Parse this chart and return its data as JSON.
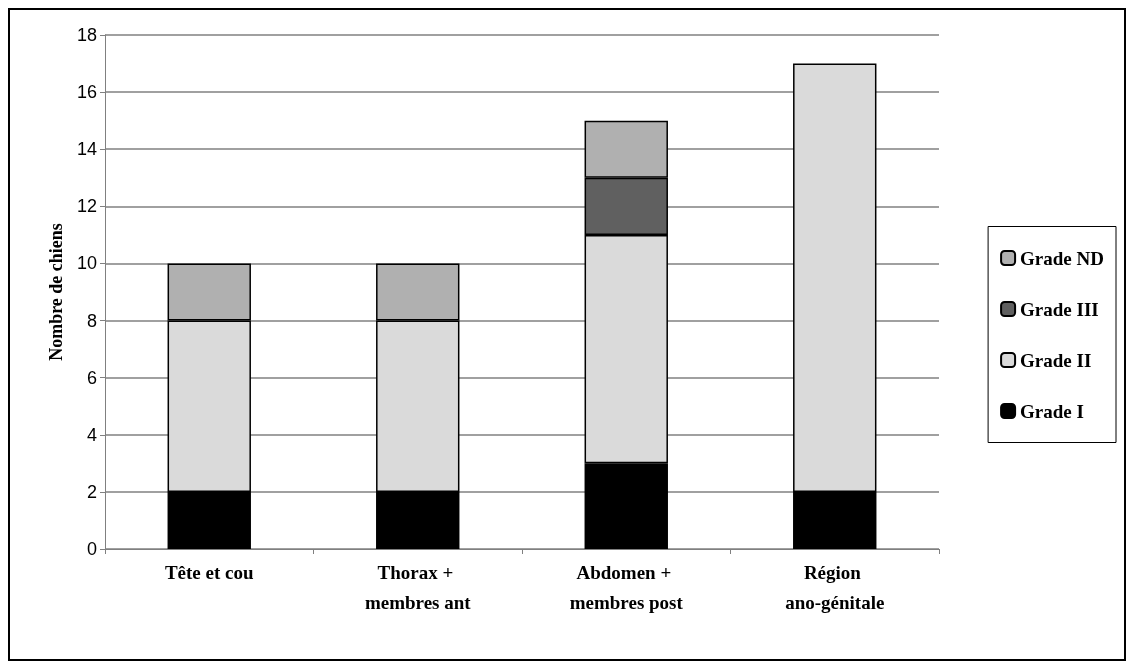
{
  "chart_data": {
    "type": "bar",
    "stacked": true,
    "ylabel": "Nombre de chiens",
    "categories": [
      "Tête et cou",
      "Thorax + membres ant",
      "Abdomen + membres post",
      "Région ano-génitale"
    ],
    "series": [
      {
        "name": "Grade I",
        "color": "#000000",
        "values": [
          2,
          2,
          3,
          2
        ]
      },
      {
        "name": "Grade II",
        "color": "#dadada",
        "values": [
          6,
          6,
          8,
          15
        ]
      },
      {
        "name": "Grade III",
        "color": "#606060",
        "values": [
          0,
          0,
          2,
          0
        ]
      },
      {
        "name": "Grade ND",
        "color": "#b0b0b0",
        "values": [
          2,
          2,
          2,
          0
        ]
      }
    ],
    "ylim": [
      0,
      18
    ],
    "yticks": [
      0,
      2,
      4,
      6,
      8,
      10,
      12,
      14,
      16,
      18
    ],
    "grid": "y",
    "legend": "right"
  }
}
